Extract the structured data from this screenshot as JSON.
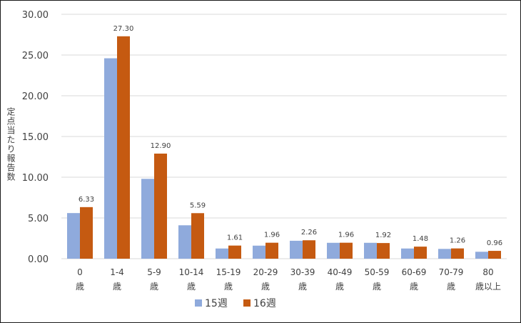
{
  "chart_data": {
    "type": "bar",
    "ylabel": "定点当たり報告数",
    "ylim": [
      0,
      30
    ],
    "yticks": [
      "0.00",
      "5.00",
      "10.00",
      "15.00",
      "20.00",
      "25.00",
      "30.00"
    ],
    "grid": true,
    "legend_position": "bottom",
    "categories": [
      {
        "top": "0",
        "bottom": "歳"
      },
      {
        "top": "1-4",
        "bottom": "歳"
      },
      {
        "top": "5-9",
        "bottom": "歳"
      },
      {
        "top": "10-14",
        "bottom": "歳"
      },
      {
        "top": "15-19",
        "bottom": "歳"
      },
      {
        "top": "20-29",
        "bottom": "歳"
      },
      {
        "top": "30-39",
        "bottom": "歳"
      },
      {
        "top": "40-49",
        "bottom": "歳"
      },
      {
        "top": "50-59",
        "bottom": "歳"
      },
      {
        "top": "60-69",
        "bottom": "歳"
      },
      {
        "top": "70-79",
        "bottom": "歳"
      },
      {
        "top": "80",
        "bottom": "歳以上"
      }
    ],
    "series": [
      {
        "name": "15週",
        "color": "#8FAADC",
        "values": [
          5.6,
          24.6,
          9.8,
          4.1,
          1.25,
          1.6,
          2.2,
          1.95,
          1.95,
          1.25,
          1.2,
          0.85
        ],
        "show_labels": false
      },
      {
        "name": "16週",
        "color": "#C55A11",
        "values": [
          6.33,
          27.3,
          12.9,
          5.59,
          1.61,
          1.96,
          2.26,
          1.96,
          1.92,
          1.48,
          1.26,
          0.96
        ],
        "labels": [
          "6.33",
          "27.30",
          "12.90",
          "5.59",
          "1.61",
          "1.96",
          "2.26",
          "1.96",
          "1.92",
          "1.48",
          "1.26",
          "0.96"
        ],
        "show_labels": true
      }
    ]
  }
}
